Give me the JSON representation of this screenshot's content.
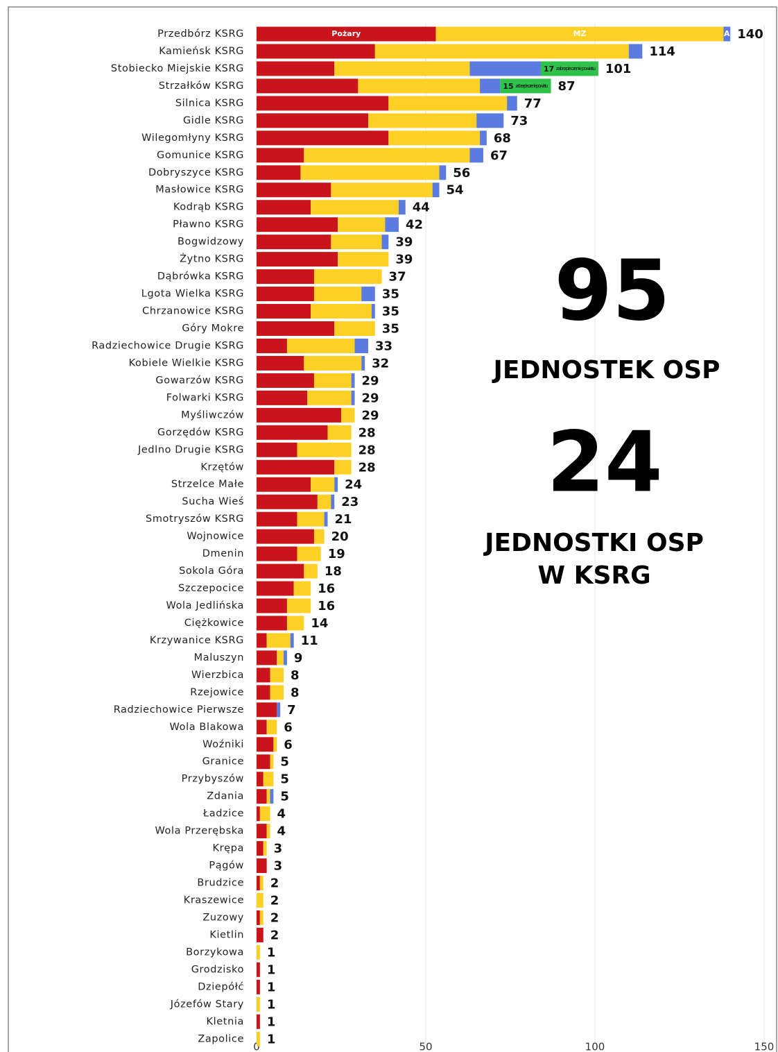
{
  "chart_data": {
    "type": "stacked-barh",
    "categories": [
      "Przedbórz KSRG",
      "Kamieńsk KSRG",
      "Stobiecko Miejskie KSRG",
      "Strzałków KSRG",
      "Silnica KSRG",
      "Gidle KSRG",
      "Wilegomłyny KSRG",
      "Gomunice KSRG",
      "Dobryszyce KSRG",
      "Masłowice KSRG",
      "Kodrąb KSRG",
      "Pławno KSRG",
      "Bogwidzowy",
      "Żytno KSRG",
      "Dąbrówka KSRG",
      "Lgota Wielka KSRG",
      "Chrzanowice KSRG",
      "Góry Mokre",
      "Radziechowice Drugie KSRG",
      "Kobiele Wielkie KSRG",
      "Gowarzów KSRG",
      "Folwarki KSRG",
      "Myśliwczów",
      "Gorzędów KSRG",
      "Jedlno Drugie KSRG",
      "Krzętów",
      "Strzelce Małe",
      "Sucha Wieś",
      "Smotryszów KSRG",
      "Wojnowice",
      "Dmenin",
      "Sokola Góra",
      "Szczepocice",
      "Wola Jedlińska",
      "Ciężkowice",
      "Krzywanice KSRG",
      "Maluszyn",
      "Wierzbica",
      "Rzejowice",
      "Radziechowice Pierwsze",
      "Wola Blakowa",
      "Woźniki",
      "Granice",
      "Przybyszów",
      "Zdania",
      "Ładzice",
      "Wola Przerębska",
      "Krępa",
      "Pągów",
      "Brudzice",
      "Kraszewice",
      "Zuzowy",
      "Kietlin",
      "Borzykowa",
      "Grodzisko",
      "Dziepółć",
      "Józefów Stary",
      "Kletnia",
      "Zapolice"
    ],
    "series": [
      {
        "name": "Pożary",
        "color": "#c8141a",
        "values": [
          53,
          35,
          23,
          30,
          39,
          33,
          39,
          14,
          13,
          22,
          16,
          24,
          22,
          24,
          17,
          17,
          16,
          23,
          9,
          14,
          17,
          15,
          25,
          21,
          12,
          23,
          16,
          18,
          12,
          17,
          12,
          14,
          11,
          9,
          9,
          3,
          6,
          4,
          4,
          6,
          3,
          5,
          4,
          2,
          3,
          1,
          3,
          2,
          3,
          1,
          0,
          1,
          2,
          0,
          1,
          1,
          0,
          1,
          0
        ]
      },
      {
        "name": "MZ",
        "color": "#fdd025",
        "values": [
          85,
          75,
          40,
          36,
          35,
          32,
          27,
          49,
          41,
          30,
          26,
          14,
          15,
          15,
          20,
          14,
          18,
          12,
          20,
          17,
          11,
          13,
          4,
          7,
          16,
          5,
          7,
          4,
          8,
          3,
          7,
          4,
          5,
          7,
          5,
          7,
          2,
          4,
          4,
          0,
          3,
          1,
          1,
          3,
          1,
          3,
          1,
          1,
          0,
          1,
          2,
          1,
          0,
          1,
          0,
          0,
          1,
          0,
          1
        ]
      },
      {
        "name": "A",
        "color": "#5b7be0",
        "values": [
          2,
          4,
          21,
          6,
          3,
          8,
          2,
          4,
          2,
          2,
          2,
          4,
          2,
          0,
          0,
          4,
          1,
          0,
          4,
          1,
          1,
          1,
          0,
          0,
          0,
          0,
          1,
          1,
          1,
          0,
          0,
          0,
          0,
          0,
          0,
          1,
          1,
          0,
          0,
          1,
          0,
          0,
          0,
          0,
          1,
          0,
          0,
          0,
          0,
          0,
          0,
          0,
          0,
          0,
          0,
          0,
          0,
          0,
          0
        ]
      },
      {
        "name": "zabezpieczenie powiatu",
        "color": "#2ec24a",
        "values": [
          0,
          0,
          17,
          15,
          0,
          0,
          0,
          0,
          0,
          0,
          0,
          0,
          0,
          0,
          0,
          0,
          0,
          0,
          0,
          0,
          0,
          0,
          0,
          0,
          0,
          0,
          0,
          0,
          0,
          0,
          0,
          0,
          0,
          0,
          0,
          0,
          0,
          0,
          0,
          0,
          0,
          0,
          0,
          0,
          0,
          0,
          0,
          0,
          0,
          0,
          0,
          0,
          0,
          0,
          0,
          0,
          0,
          0,
          0
        ]
      }
    ],
    "totals": [
      140,
      114,
      101,
      87,
      77,
      73,
      68,
      67,
      56,
      54,
      44,
      42,
      39,
      39,
      37,
      35,
      35,
      35,
      33,
      32,
      29,
      29,
      29,
      28,
      28,
      28,
      24,
      23,
      21,
      20,
      19,
      18,
      16,
      16,
      14,
      11,
      9,
      8,
      8,
      7,
      6,
      6,
      5,
      5,
      5,
      4,
      4,
      3,
      3,
      2,
      2,
      2,
      2,
      1,
      1,
      1,
      1,
      1,
      1
    ],
    "xlim": [
      0,
      150
    ],
    "xticks": [
      0,
      50,
      100,
      150
    ],
    "grid": true,
    "annotations": [
      "95",
      "JEDNOSTEK OSP",
      "24",
      "JEDNOSTKI OSP",
      "W KSRG"
    ]
  }
}
